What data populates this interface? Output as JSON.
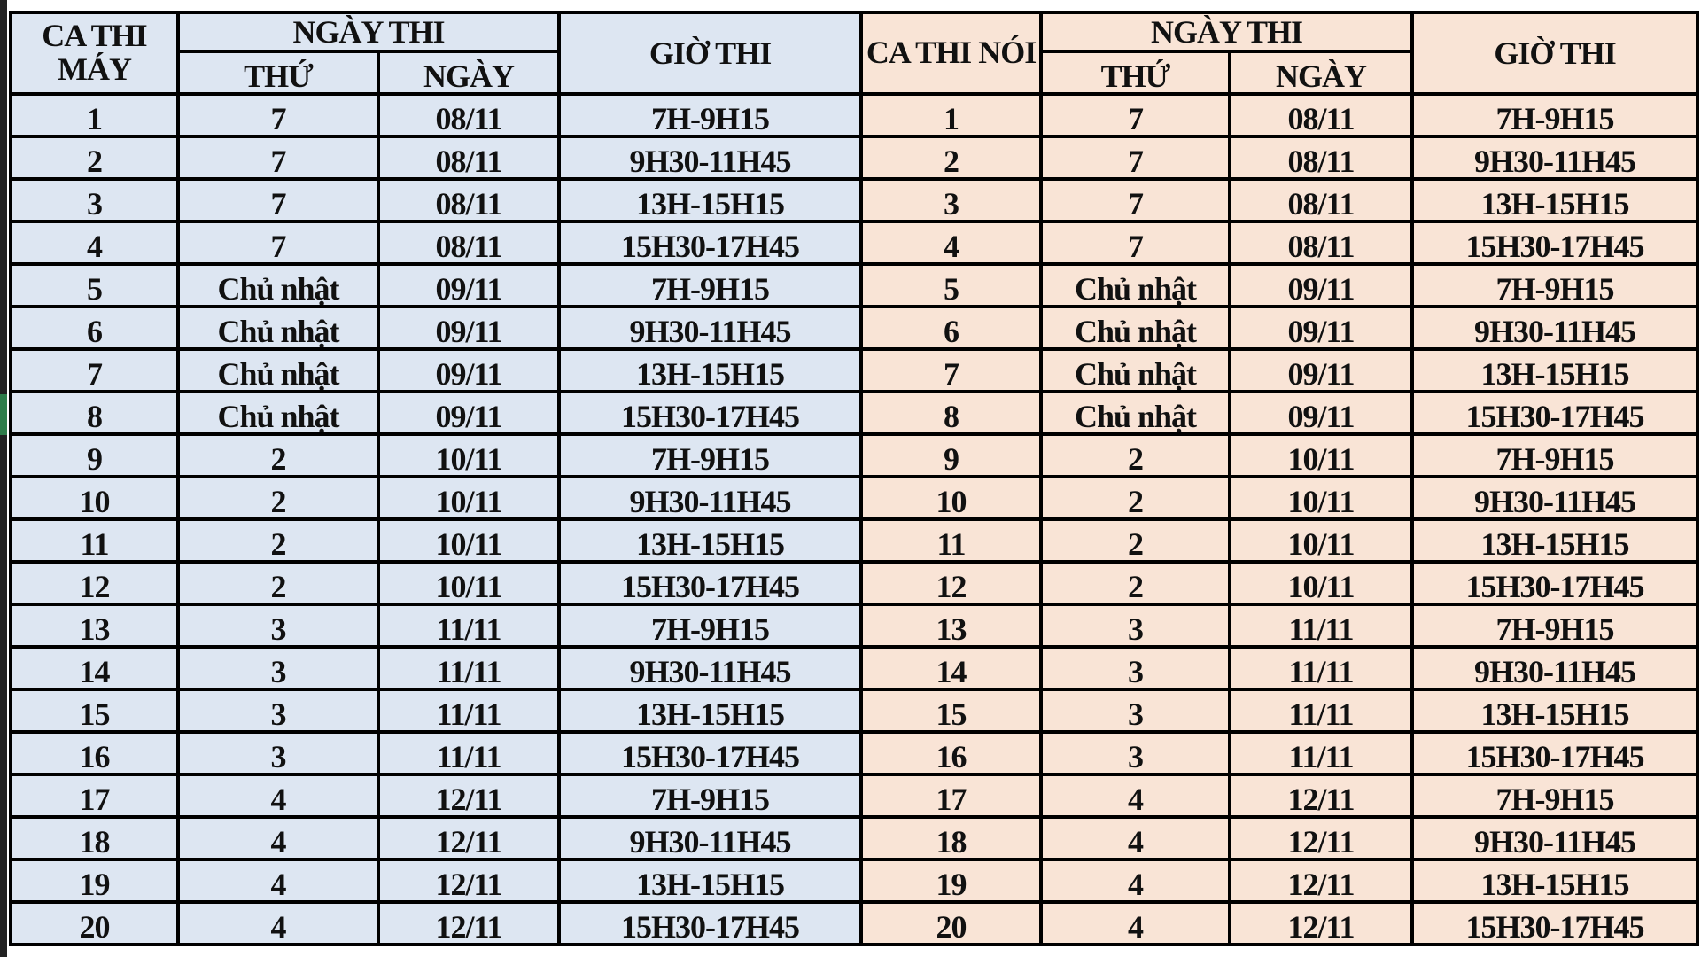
{
  "headers": {
    "left_session": "CA THI MÁY",
    "right_session": "CA THI NÓI",
    "exam_date": "NGÀY THI",
    "weekday": "THỨ",
    "date": "NGÀY",
    "exam_time": "GIỜ THI"
  },
  "colors": {
    "left_bg": "#dde6f2",
    "right_bg": "#f9e4d6"
  },
  "rows": [
    {
      "ca": "1",
      "thu": "7",
      "ngay": "08/11",
      "gio": "7H-9H15"
    },
    {
      "ca": "2",
      "thu": "7",
      "ngay": "08/11",
      "gio": "9H30-11H45"
    },
    {
      "ca": "3",
      "thu": "7",
      "ngay": "08/11",
      "gio": "13H-15H15"
    },
    {
      "ca": "4",
      "thu": "7",
      "ngay": "08/11",
      "gio": "15H30-17H45"
    },
    {
      "ca": "5",
      "thu": "Chủ nhật",
      "ngay": "09/11",
      "gio": "7H-9H15"
    },
    {
      "ca": "6",
      "thu": "Chủ nhật",
      "ngay": "09/11",
      "gio": "9H30-11H45"
    },
    {
      "ca": "7",
      "thu": "Chủ nhật",
      "ngay": "09/11",
      "gio": "13H-15H15"
    },
    {
      "ca": "8",
      "thu": "Chủ nhật",
      "ngay": "09/11",
      "gio": "15H30-17H45"
    },
    {
      "ca": "9",
      "thu": "2",
      "ngay": "10/11",
      "gio": "7H-9H15"
    },
    {
      "ca": "10",
      "thu": "2",
      "ngay": "10/11",
      "gio": "9H30-11H45"
    },
    {
      "ca": "11",
      "thu": "2",
      "ngay": "10/11",
      "gio": "13H-15H15"
    },
    {
      "ca": "12",
      "thu": "2",
      "ngay": "10/11",
      "gio": "15H30-17H45"
    },
    {
      "ca": "13",
      "thu": "3",
      "ngay": "11/11",
      "gio": "7H-9H15"
    },
    {
      "ca": "14",
      "thu": "3",
      "ngay": "11/11",
      "gio": "9H30-11H45"
    },
    {
      "ca": "15",
      "thu": "3",
      "ngay": "11/11",
      "gio": "13H-15H15"
    },
    {
      "ca": "16",
      "thu": "3",
      "ngay": "11/11",
      "gio": "15H30-17H45"
    },
    {
      "ca": "17",
      "thu": "4",
      "ngay": "12/11",
      "gio": "7H-9H15"
    },
    {
      "ca": "18",
      "thu": "4",
      "ngay": "12/11",
      "gio": "9H30-11H45"
    },
    {
      "ca": "19",
      "thu": "4",
      "ngay": "12/11",
      "gio": "13H-15H15"
    },
    {
      "ca": "20",
      "thu": "4",
      "ngay": "12/11",
      "gio": "15H30-17H45"
    }
  ]
}
